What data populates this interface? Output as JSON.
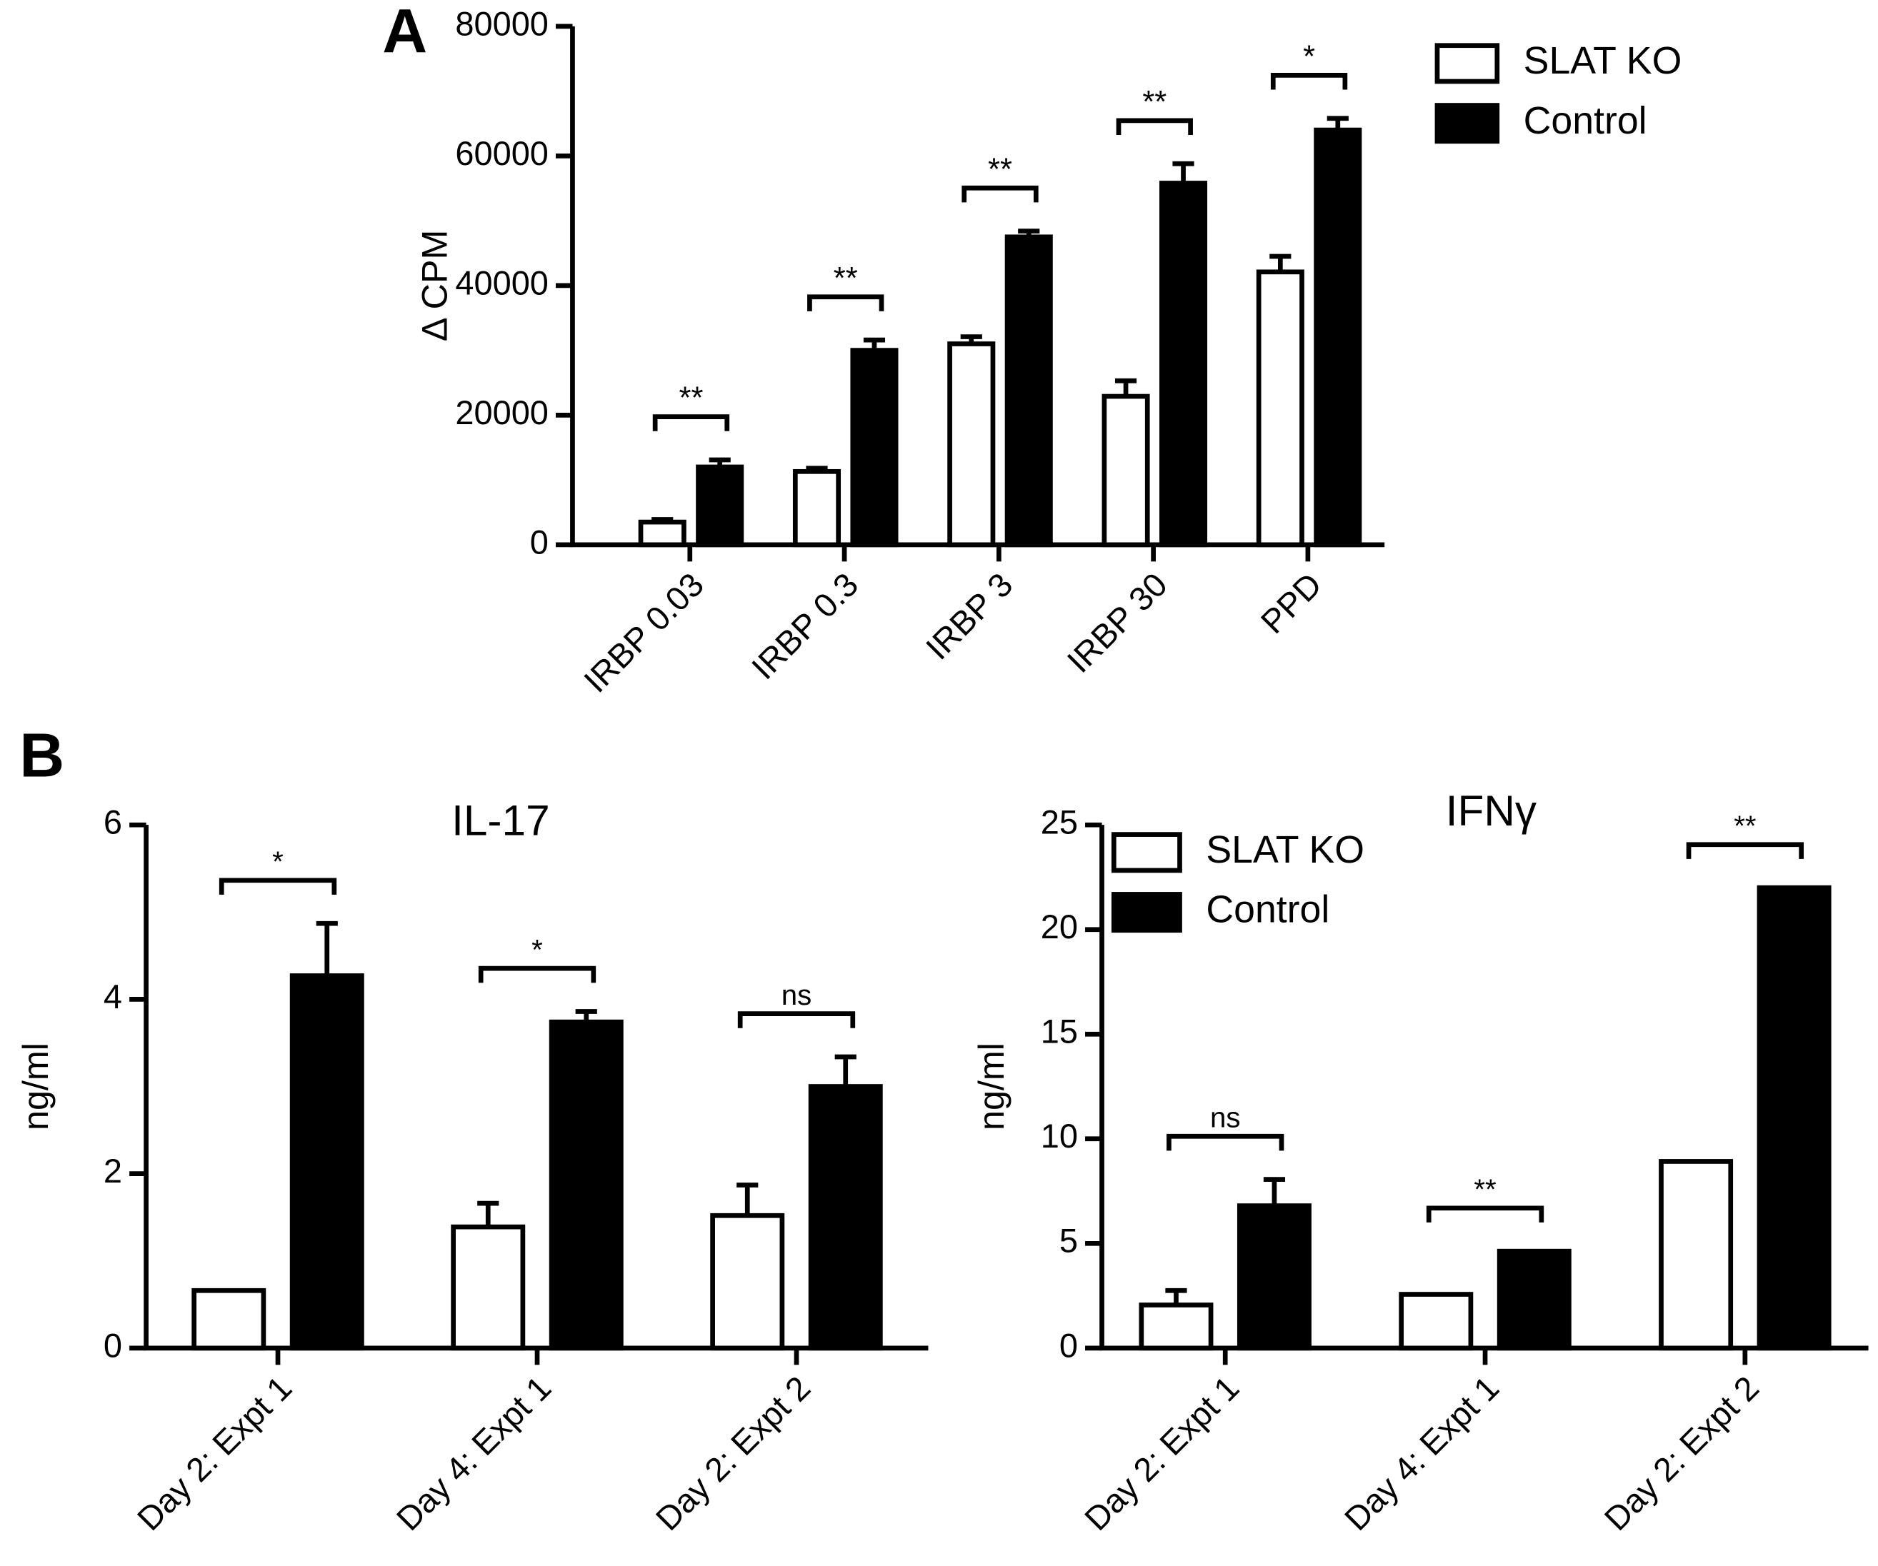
{
  "panels": [
    "A",
    "B"
  ],
  "chart_data": [
    {
      "type": "bar",
      "y_label": "Δ CPM",
      "categories": [
        "IRBP 0.03",
        "IRBP 0.3",
        "IRBP 3",
        "IRBP 30",
        "PPD"
      ],
      "series": [
        {
          "name": "SLAT KO",
          "color": "#ffffff",
          "values": [
            3500,
            11300,
            31000,
            22900,
            42100
          ],
          "errors": [
            400,
            500,
            1100,
            2400,
            2400
          ]
        },
        {
          "name": "Control",
          "color": "#000000",
          "values": [
            12000,
            30000,
            47500,
            55800,
            64000
          ],
          "errors": [
            1100,
            1600,
            900,
            3000,
            1800
          ]
        }
      ],
      "significance": [
        "**",
        "**",
        "**",
        "**",
        "*"
      ],
      "ylim": [
        0,
        80000
      ],
      "yticks": [
        0,
        20000,
        40000,
        60000,
        80000
      ],
      "legend": "upper right"
    },
    {
      "type": "bar",
      "title": "IL-17",
      "y_label": "ng/ml",
      "categories": [
        "Day 2: Expt 1",
        "Day 4: Expt 1",
        "Day 2: Expt 2"
      ],
      "series": [
        {
          "color": "#ffffff",
          "values": [
            0.66,
            1.39,
            1.52
          ],
          "errors": [
            null,
            0.27,
            0.35
          ]
        },
        {
          "color": "#000000",
          "values": [
            4.27,
            3.74,
            3.0
          ],
          "errors": [
            0.6,
            0.12,
            0.34
          ]
        }
      ],
      "significance": [
        "*",
        "*",
        "ns"
      ],
      "ylim": [
        0,
        6
      ],
      "yticks": [
        0,
        2,
        4,
        6
      ]
    },
    {
      "type": "bar",
      "title": "IFNγ",
      "y_label": "ng/ml",
      "categories": [
        "Day 2: Expt 1",
        "Day 4: Expt 1",
        "Day 2: Expt 2"
      ],
      "series": [
        {
          "name": "SLAT KO",
          "color": "#ffffff",
          "values": [
            2.06,
            2.57,
            8.92
          ],
          "errors": [
            0.69,
            null,
            null
          ]
        },
        {
          "name": "Control",
          "color": "#000000",
          "values": [
            6.8,
            4.63,
            22.0
          ],
          "errors": [
            1.26,
            null,
            null
          ]
        }
      ],
      "significance": [
        "ns",
        "**",
        "**"
      ],
      "ylim": [
        0,
        25
      ],
      "yticks": [
        0,
        5,
        10,
        15,
        20,
        25
      ],
      "legend": "upper left"
    }
  ]
}
